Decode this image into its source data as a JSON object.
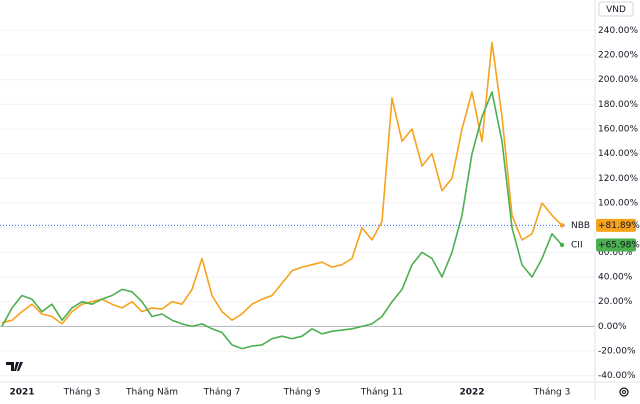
{
  "chart_data": {
    "type": "line",
    "currency": "VND",
    "categories": [
      null,
      null,
      "2021",
      null,
      null,
      null,
      null,
      null,
      "Tháng 3",
      null,
      null,
      null,
      null,
      null,
      null,
      "Tháng Năm",
      null,
      null,
      null,
      null,
      null,
      null,
      "Tháng 7",
      null,
      null,
      null,
      null,
      null,
      null,
      null,
      "Tháng 9",
      null,
      null,
      null,
      null,
      null,
      null,
      null,
      "Tháng 11",
      null,
      null,
      null,
      null,
      null,
      null,
      null,
      null,
      "2022",
      null,
      null,
      null,
      null,
      null,
      null,
      null,
      "Tháng 3",
      null
    ],
    "series": [
      {
        "name": "NBB",
        "color": "#f7a21b",
        "last_label": "+81.89%",
        "values": [
          3,
          5,
          12,
          18,
          10,
          8,
          2,
          12,
          18,
          20,
          22,
          18,
          15,
          20,
          12,
          15,
          14,
          20,
          18,
          30,
          55,
          25,
          12,
          5,
          10,
          18,
          22,
          25,
          35,
          45,
          48,
          50,
          52,
          48,
          50,
          55,
          80,
          70,
          85,
          185,
          150,
          160,
          130,
          140,
          110,
          120,
          160,
          190,
          150,
          230,
          170,
          90,
          70,
          75,
          100,
          90,
          81.89
        ]
      },
      {
        "name": "CII",
        "color": "#4caf50",
        "last_label": "+65.98%",
        "values": [
          0,
          15,
          25,
          22,
          12,
          18,
          5,
          15,
          20,
          18,
          22,
          25,
          30,
          28,
          20,
          8,
          10,
          5,
          2,
          0,
          2,
          -2,
          -5,
          -15,
          -18,
          -16,
          -15,
          -10,
          -8,
          -10,
          -8,
          -2,
          -6,
          -4,
          -3,
          -2,
          0,
          2,
          8,
          20,
          30,
          50,
          60,
          55,
          40,
          60,
          90,
          140,
          170,
          190,
          150,
          80,
          50,
          40,
          55,
          75,
          65.98
        ]
      }
    ],
    "ylim": [
      -40,
      240
    ],
    "yticks": [
      {
        "value": -40,
        "label": "-40.00%"
      },
      {
        "value": -20,
        "label": "-20.00%"
      },
      {
        "value": 0,
        "label": "0.00%"
      },
      {
        "value": 20,
        "label": "20.00%"
      },
      {
        "value": 40,
        "label": "40.00%"
      },
      {
        "value": 60,
        "label": "60.00%"
      },
      {
        "value": 80,
        "label": "80.00%"
      },
      {
        "value": 100,
        "label": "100.00%"
      },
      {
        "value": 120,
        "label": "120.00%"
      },
      {
        "value": 140,
        "label": "140.00%"
      },
      {
        "value": 160,
        "label": "160.00%"
      },
      {
        "value": 180,
        "label": "180.00%"
      },
      {
        "value": 200,
        "label": "200.00%"
      },
      {
        "value": 220,
        "label": "220.00%"
      },
      {
        "value": 240,
        "label": "240.00%"
      }
    ],
    "grid": true
  }
}
